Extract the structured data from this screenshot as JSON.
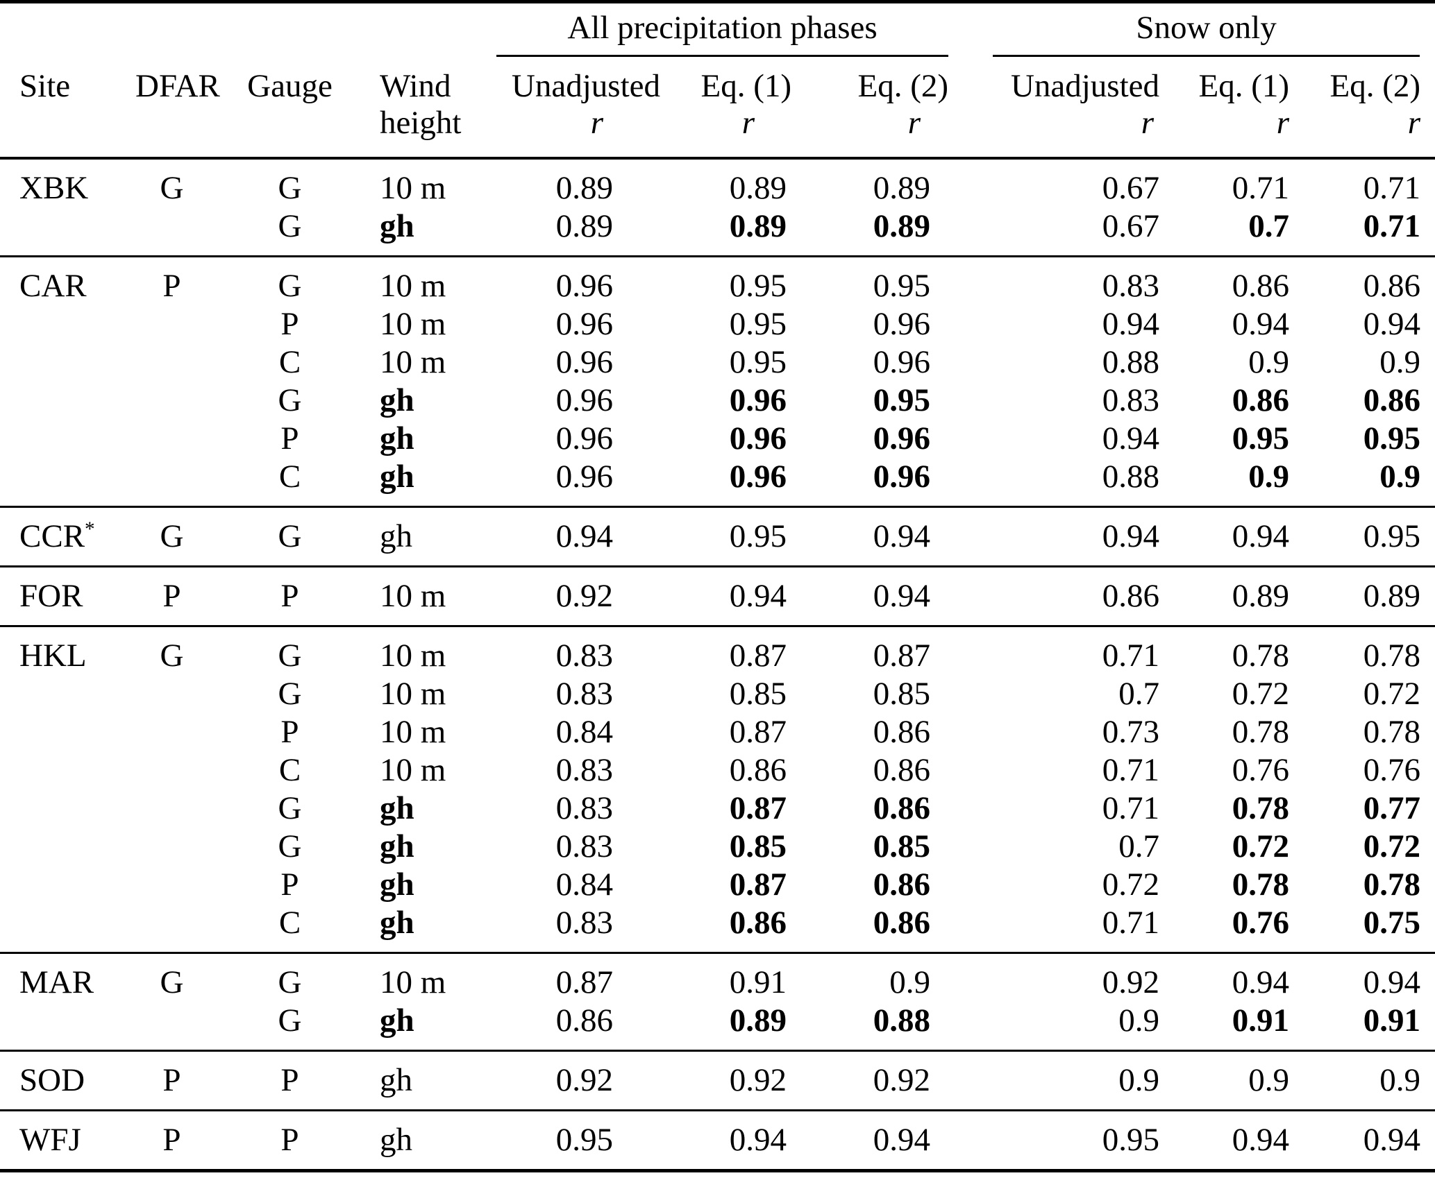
{
  "table": {
    "r_label": "r",
    "column_headers": {
      "site": "Site",
      "dfar": "DFAR",
      "gauge": "Gauge",
      "wind_line1": "Wind",
      "wind_line2": "height"
    },
    "groups": [
      {
        "label": "All precipitation phases",
        "columns": [
          "Unadjusted",
          "Eq. (1)",
          "Eq. (2)"
        ]
      },
      {
        "label": "Snow only",
        "columns": [
          "Unadjusted",
          "Eq. (1)",
          "Eq. (2)"
        ]
      }
    ],
    "sections": [
      {
        "rows": [
          {
            "site": "XBK",
            "dfar": "G",
            "gauge": "G",
            "wind": "10 m",
            "wind_bold": false,
            "all": [
              "0.89",
              "0.89",
              "0.89"
            ],
            "all_bold": [
              false,
              false,
              false
            ],
            "snow": [
              "0.67",
              "0.71",
              "0.71"
            ],
            "snow_bold": [
              false,
              false,
              false
            ]
          },
          {
            "site": "",
            "dfar": "",
            "gauge": "G",
            "wind": "gh",
            "wind_bold": true,
            "all": [
              "0.89",
              "0.89",
              "0.89"
            ],
            "all_bold": [
              false,
              true,
              true
            ],
            "snow": [
              "0.67",
              "0.7",
              "0.71"
            ],
            "snow_bold": [
              false,
              true,
              true
            ]
          }
        ]
      },
      {
        "rows": [
          {
            "site": "CAR",
            "dfar": "P",
            "gauge": "G",
            "wind": "10 m",
            "wind_bold": false,
            "all": [
              "0.96",
              "0.95",
              "0.95"
            ],
            "all_bold": [
              false,
              false,
              false
            ],
            "snow": [
              "0.83",
              "0.86",
              "0.86"
            ],
            "snow_bold": [
              false,
              false,
              false
            ]
          },
          {
            "site": "",
            "dfar": "",
            "gauge": "P",
            "wind": "10 m",
            "wind_bold": false,
            "all": [
              "0.96",
              "0.95",
              "0.96"
            ],
            "all_bold": [
              false,
              false,
              false
            ],
            "snow": [
              "0.94",
              "0.94",
              "0.94"
            ],
            "snow_bold": [
              false,
              false,
              false
            ]
          },
          {
            "site": "",
            "dfar": "",
            "gauge": "C",
            "wind": "10 m",
            "wind_bold": false,
            "all": [
              "0.96",
              "0.95",
              "0.96"
            ],
            "all_bold": [
              false,
              false,
              false
            ],
            "snow": [
              "0.88",
              "0.9",
              "0.9"
            ],
            "snow_bold": [
              false,
              false,
              false
            ]
          },
          {
            "site": "",
            "dfar": "",
            "gauge": "G",
            "wind": "gh",
            "wind_bold": true,
            "all": [
              "0.96",
              "0.96",
              "0.95"
            ],
            "all_bold": [
              false,
              true,
              true
            ],
            "snow": [
              "0.83",
              "0.86",
              "0.86"
            ],
            "snow_bold": [
              false,
              true,
              true
            ]
          },
          {
            "site": "",
            "dfar": "",
            "gauge": "P",
            "wind": "gh",
            "wind_bold": true,
            "all": [
              "0.96",
              "0.96",
              "0.96"
            ],
            "all_bold": [
              false,
              true,
              true
            ],
            "snow": [
              "0.94",
              "0.95",
              "0.95"
            ],
            "snow_bold": [
              false,
              true,
              true
            ]
          },
          {
            "site": "",
            "dfar": "",
            "gauge": "C",
            "wind": "gh",
            "wind_bold": true,
            "all": [
              "0.96",
              "0.96",
              "0.96"
            ],
            "all_bold": [
              false,
              true,
              true
            ],
            "snow": [
              "0.88",
              "0.9",
              "0.9"
            ],
            "snow_bold": [
              false,
              true,
              true
            ]
          }
        ]
      },
      {
        "rows": [
          {
            "site": "CCR",
            "site_sup": "*",
            "dfar": "G",
            "gauge": "G",
            "wind": "gh",
            "wind_bold": false,
            "all": [
              "0.94",
              "0.95",
              "0.94"
            ],
            "all_bold": [
              false,
              false,
              false
            ],
            "snow": [
              "0.94",
              "0.94",
              "0.95"
            ],
            "snow_bold": [
              false,
              false,
              false
            ]
          }
        ]
      },
      {
        "rows": [
          {
            "site": "FOR",
            "dfar": "P",
            "gauge": "P",
            "wind": "10 m",
            "wind_bold": false,
            "all": [
              "0.92",
              "0.94",
              "0.94"
            ],
            "all_bold": [
              false,
              false,
              false
            ],
            "snow": [
              "0.86",
              "0.89",
              "0.89"
            ],
            "snow_bold": [
              false,
              false,
              false
            ]
          }
        ]
      },
      {
        "rows": [
          {
            "site": "HKL",
            "dfar": "G",
            "gauge": "G",
            "wind": "10 m",
            "wind_bold": false,
            "all": [
              "0.83",
              "0.87",
              "0.87"
            ],
            "all_bold": [
              false,
              false,
              false
            ],
            "snow": [
              "0.71",
              "0.78",
              "0.78"
            ],
            "snow_bold": [
              false,
              false,
              false
            ]
          },
          {
            "site": "",
            "dfar": "",
            "gauge": "G",
            "wind": "10 m",
            "wind_bold": false,
            "all": [
              "0.83",
              "0.85",
              "0.85"
            ],
            "all_bold": [
              false,
              false,
              false
            ],
            "snow": [
              "0.7",
              "0.72",
              "0.72"
            ],
            "snow_bold": [
              false,
              false,
              false
            ]
          },
          {
            "site": "",
            "dfar": "",
            "gauge": "P",
            "wind": "10 m",
            "wind_bold": false,
            "all": [
              "0.84",
              "0.87",
              "0.86"
            ],
            "all_bold": [
              false,
              false,
              false
            ],
            "snow": [
              "0.73",
              "0.78",
              "0.78"
            ],
            "snow_bold": [
              false,
              false,
              false
            ]
          },
          {
            "site": "",
            "dfar": "",
            "gauge": "C",
            "wind": "10 m",
            "wind_bold": false,
            "all": [
              "0.83",
              "0.86",
              "0.86"
            ],
            "all_bold": [
              false,
              false,
              false
            ],
            "snow": [
              "0.71",
              "0.76",
              "0.76"
            ],
            "snow_bold": [
              false,
              false,
              false
            ]
          },
          {
            "site": "",
            "dfar": "",
            "gauge": "G",
            "wind": "gh",
            "wind_bold": true,
            "all": [
              "0.83",
              "0.87",
              "0.86"
            ],
            "all_bold": [
              false,
              true,
              true
            ],
            "snow": [
              "0.71",
              "0.78",
              "0.77"
            ],
            "snow_bold": [
              false,
              true,
              true
            ]
          },
          {
            "site": "",
            "dfar": "",
            "gauge": "G",
            "wind": "gh",
            "wind_bold": true,
            "all": [
              "0.83",
              "0.85",
              "0.85"
            ],
            "all_bold": [
              false,
              true,
              true
            ],
            "snow": [
              "0.7",
              "0.72",
              "0.72"
            ],
            "snow_bold": [
              false,
              true,
              true
            ]
          },
          {
            "site": "",
            "dfar": "",
            "gauge": "P",
            "wind": "gh",
            "wind_bold": true,
            "all": [
              "0.84",
              "0.87",
              "0.86"
            ],
            "all_bold": [
              false,
              true,
              true
            ],
            "snow": [
              "0.72",
              "0.78",
              "0.78"
            ],
            "snow_bold": [
              false,
              true,
              true
            ]
          },
          {
            "site": "",
            "dfar": "",
            "gauge": "C",
            "wind": "gh",
            "wind_bold": true,
            "all": [
              "0.83",
              "0.86",
              "0.86"
            ],
            "all_bold": [
              false,
              true,
              true
            ],
            "snow": [
              "0.71",
              "0.76",
              "0.75"
            ],
            "snow_bold": [
              false,
              true,
              true
            ]
          }
        ]
      },
      {
        "rows": [
          {
            "site": "MAR",
            "dfar": "G",
            "gauge": "G",
            "wind": "10 m",
            "wind_bold": false,
            "all": [
              "0.87",
              "0.91",
              "0.9"
            ],
            "all_bold": [
              false,
              false,
              false
            ],
            "snow": [
              "0.92",
              "0.94",
              "0.94"
            ],
            "snow_bold": [
              false,
              false,
              false
            ]
          },
          {
            "site": "",
            "dfar": "",
            "gauge": "G",
            "wind": "gh",
            "wind_bold": true,
            "all": [
              "0.86",
              "0.89",
              "0.88"
            ],
            "all_bold": [
              false,
              true,
              true
            ],
            "snow": [
              "0.9",
              "0.91",
              "0.91"
            ],
            "snow_bold": [
              false,
              true,
              true
            ]
          }
        ]
      },
      {
        "rows": [
          {
            "site": "SOD",
            "dfar": "P",
            "gauge": "P",
            "wind": "gh",
            "wind_bold": false,
            "all": [
              "0.92",
              "0.92",
              "0.92"
            ],
            "all_bold": [
              false,
              false,
              false
            ],
            "snow": [
              "0.9",
              "0.9",
              "0.9"
            ],
            "snow_bold": [
              false,
              false,
              false
            ]
          }
        ]
      },
      {
        "rows": [
          {
            "site": "WFJ",
            "dfar": "P",
            "gauge": "P",
            "wind": "gh",
            "wind_bold": false,
            "all": [
              "0.95",
              "0.94",
              "0.94"
            ],
            "all_bold": [
              false,
              false,
              false
            ],
            "snow": [
              "0.95",
              "0.94",
              "0.94"
            ],
            "snow_bold": [
              false,
              false,
              false
            ]
          }
        ]
      }
    ]
  }
}
